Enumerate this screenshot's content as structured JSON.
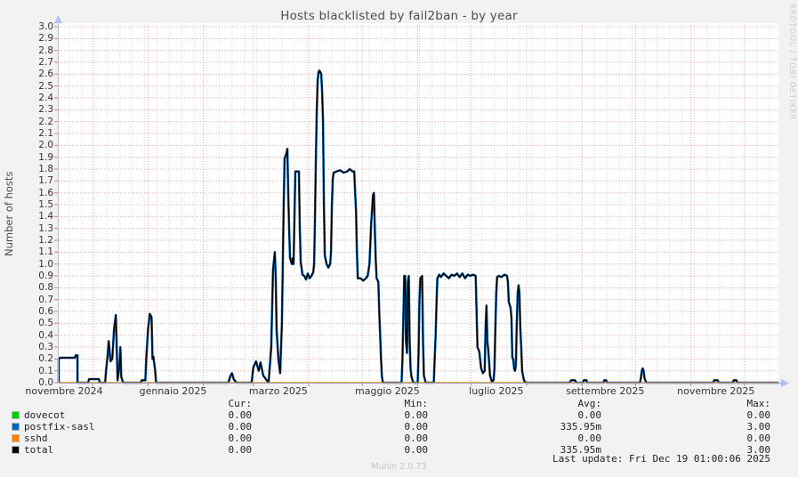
{
  "header": {
    "title": "Hosts blacklisted by fail2ban - by year"
  },
  "watermark_text": "RRDTOOL / TOBI OETIKER",
  "footer": {
    "version": "Munin 2.0.73"
  },
  "chart_data": {
    "type": "line",
    "title": "Hosts blacklisted by fail2ban - by year",
    "xlabel": "",
    "ylabel": "Number of hosts",
    "ylim": [
      0,
      3.0
    ],
    "y_tick_step": 0.1,
    "grid": true,
    "legend_position": "bottom",
    "x_axis": {
      "total_days": 403,
      "tick_labels": [
        "novembre 2024",
        "gennaio 2025",
        "marzo 2025",
        "maggio 2025",
        "luglio 2025",
        "settembre 2025",
        "novembre 2025"
      ],
      "tick_label_days": [
        3,
        64,
        123,
        184,
        245,
        306,
        368
      ],
      "month_boundary_days": [
        19,
        50,
        81,
        109,
        140,
        170,
        201,
        231,
        262,
        293,
        323,
        354,
        384
      ],
      "minor_grid_step_days": 7
    },
    "curve_points": [
      [
        0,
        0
      ],
      [
        0,
        0.2
      ],
      [
        1,
        0.21
      ],
      [
        9,
        0.21
      ],
      [
        9.5,
        0.23
      ],
      [
        10.5,
        0.23
      ],
      [
        10.5,
        0
      ],
      [
        16.5,
        0
      ],
      [
        17,
        0.03
      ],
      [
        22.5,
        0.03
      ],
      [
        23,
        0
      ],
      [
        26,
        0
      ],
      [
        26.5,
        0.1
      ],
      [
        27.5,
        0.25
      ],
      [
        28,
        0.35
      ],
      [
        29,
        0.18
      ],
      [
        30,
        0.2
      ],
      [
        31,
        0.45
      ],
      [
        32,
        0.57
      ],
      [
        32.5,
        0.3
      ],
      [
        33,
        0.02
      ],
      [
        34,
        0.15
      ],
      [
        34.5,
        0.3
      ],
      [
        35,
        0.05
      ],
      [
        36,
        0
      ],
      [
        46,
        0
      ],
      [
        46.5,
        0.02
      ],
      [
        48.5,
        0.02
      ],
      [
        49,
        0.2
      ],
      [
        50,
        0.45
      ],
      [
        51,
        0.58
      ],
      [
        52,
        0.55
      ],
      [
        52.5,
        0.2
      ],
      [
        53,
        0.22
      ],
      [
        54,
        0.1
      ],
      [
        54.5,
        0
      ],
      [
        95,
        0
      ],
      [
        96,
        0.05
      ],
      [
        97,
        0.08
      ],
      [
        98,
        0.03
      ],
      [
        99.5,
        0
      ],
      [
        108,
        0
      ],
      [
        109,
        0.13
      ],
      [
        110.5,
        0.18
      ],
      [
        112,
        0.1
      ],
      [
        113,
        0.17
      ],
      [
        114.5,
        0.06
      ],
      [
        116,
        0.03
      ],
      [
        117.5,
        0
      ],
      [
        119,
        0.3
      ],
      [
        120,
        0.95
      ],
      [
        121,
        1.1
      ],
      [
        121.5,
        0.9
      ],
      [
        122,
        0.45
      ],
      [
        123,
        0.2
      ],
      [
        124,
        0.08
      ],
      [
        125,
        0.5
      ],
      [
        126,
        1.5
      ],
      [
        126.5,
        1.89
      ],
      [
        127.5,
        1.93
      ],
      [
        128,
        1.97
      ],
      [
        128.5,
        1.6
      ],
      [
        129,
        1.3
      ],
      [
        129.5,
        1.05
      ],
      [
        130.5,
        1.0
      ],
      [
        131,
        1.05
      ],
      [
        131.5,
        1.0
      ],
      [
        132,
        1.4
      ],
      [
        132.5,
        1.78
      ],
      [
        134.5,
        1.78
      ],
      [
        135,
        1.3
      ],
      [
        135.5,
        1.02
      ],
      [
        136.5,
        0.91
      ],
      [
        137.5,
        0.9
      ],
      [
        138.5,
        0.87
      ],
      [
        139.5,
        0.92
      ],
      [
        140.5,
        0.88
      ],
      [
        141.5,
        0.9
      ],
      [
        142.5,
        0.93
      ],
      [
        143,
        1.0
      ],
      [
        143.5,
        1.4
      ],
      [
        144,
        1.9
      ],
      [
        144.5,
        2.3
      ],
      [
        145,
        2.55
      ],
      [
        145.5,
        2.62
      ],
      [
        146,
        2.63
      ],
      [
        147,
        2.6
      ],
      [
        147.5,
        2.45
      ],
      [
        148,
        2.2
      ],
      [
        148.5,
        1.5
      ],
      [
        149,
        1.07
      ],
      [
        150,
        1.0
      ],
      [
        151,
        0.97
      ],
      [
        152,
        1.0
      ],
      [
        152.5,
        1.1
      ],
      [
        153,
        1.5
      ],
      [
        153.5,
        1.72
      ],
      [
        154,
        1.77
      ],
      [
        155.5,
        1.78
      ],
      [
        157.5,
        1.79
      ],
      [
        159.5,
        1.77
      ],
      [
        161.5,
        1.78
      ],
      [
        163,
        1.8
      ],
      [
        164.5,
        1.78
      ],
      [
        165.5,
        1.78
      ],
      [
        166,
        1.6
      ],
      [
        166.5,
        1.45
      ],
      [
        167,
        1.1
      ],
      [
        167.5,
        0.88
      ],
      [
        169,
        0.88
      ],
      [
        170.5,
        0.86
      ],
      [
        172,
        0.88
      ],
      [
        173,
        0.9
      ],
      [
        174,
        1.0
      ],
      [
        175,
        1.35
      ],
      [
        176,
        1.58
      ],
      [
        176.5,
        1.6
      ],
      [
        177,
        1.3
      ],
      [
        177.5,
        1.05
      ],
      [
        178,
        0.88
      ],
      [
        179,
        0.85
      ],
      [
        179.5,
        0.6
      ],
      [
        180.5,
        0.2
      ],
      [
        181,
        0.05
      ],
      [
        181.5,
        0
      ],
      [
        192,
        0
      ],
      [
        192.5,
        0.2
      ],
      [
        193,
        0.55
      ],
      [
        193.5,
        0.9
      ],
      [
        194,
        0.9
      ],
      [
        194.5,
        0.35
      ],
      [
        195,
        0.25
      ],
      [
        195.5,
        0.85
      ],
      [
        196,
        0.9
      ],
      [
        196.5,
        0.35
      ],
      [
        197,
        0.12
      ],
      [
        197.5,
        0.05
      ],
      [
        198.5,
        0
      ],
      [
        201,
        0
      ],
      [
        201.5,
        0.25
      ],
      [
        202,
        0.7
      ],
      [
        202.5,
        0.88
      ],
      [
        203.5,
        0.9
      ],
      [
        204,
        0.35
      ],
      [
        204.5,
        0.06
      ],
      [
        205.5,
        0
      ],
      [
        210,
        0
      ],
      [
        210.5,
        0.2
      ],
      [
        211,
        0.38
      ],
      [
        211.5,
        0.65
      ],
      [
        212,
        0.88
      ],
      [
        213,
        0.91
      ],
      [
        214,
        0.89
      ],
      [
        215.5,
        0.92
      ],
      [
        217,
        0.9
      ],
      [
        218.5,
        0.88
      ],
      [
        220,
        0.91
      ],
      [
        221.5,
        0.9
      ],
      [
        223,
        0.92
      ],
      [
        224.5,
        0.89
      ],
      [
        226,
        0.92
      ],
      [
        227.5,
        0.88
      ],
      [
        229,
        0.91
      ],
      [
        230.5,
        0.9
      ],
      [
        232,
        0.91
      ],
      [
        233.5,
        0.9
      ],
      [
        234,
        0.6
      ],
      [
        234.5,
        0.3
      ],
      [
        235.5,
        0.26
      ],
      [
        236.5,
        0.12
      ],
      [
        237.5,
        0.08
      ],
      [
        238.5,
        0.1
      ],
      [
        239,
        0.45
      ],
      [
        239.5,
        0.65
      ],
      [
        240,
        0.35
      ],
      [
        240.5,
        0.28
      ],
      [
        241.5,
        0.06
      ],
      [
        242.5,
        0.01
      ],
      [
        243.5,
        0.02
      ],
      [
        244,
        0.12
      ],
      [
        244.5,
        0.45
      ],
      [
        245,
        0.75
      ],
      [
        245.5,
        0.89
      ],
      [
        246.5,
        0.9
      ],
      [
        248,
        0.89
      ],
      [
        249.5,
        0.91
      ],
      [
        251,
        0.9
      ],
      [
        251.5,
        0.85
      ],
      [
        252,
        0.68
      ],
      [
        253,
        0.63
      ],
      [
        253.5,
        0.55
      ],
      [
        254,
        0.21
      ],
      [
        254.5,
        0.2
      ],
      [
        255,
        0.12
      ],
      [
        255.5,
        0.1
      ],
      [
        256,
        0.15
      ],
      [
        256.5,
        0.5
      ],
      [
        257,
        0.75
      ],
      [
        257.5,
        0.82
      ],
      [
        258,
        0.75
      ],
      [
        258.5,
        0.45
      ],
      [
        259,
        0.3
      ],
      [
        259.5,
        0.1
      ],
      [
        260.5,
        0.02
      ],
      [
        261.5,
        0
      ],
      [
        286,
        0
      ],
      [
        287,
        0.02
      ],
      [
        289,
        0.02
      ],
      [
        290,
        0
      ],
      [
        293.5,
        0
      ],
      [
        294,
        0.02
      ],
      [
        295.5,
        0.02
      ],
      [
        296,
        0
      ],
      [
        305,
        0
      ],
      [
        305.5,
        0.02
      ],
      [
        306.5,
        0.02
      ],
      [
        307,
        0
      ],
      [
        325.5,
        0
      ],
      [
        326,
        0.04
      ],
      [
        326.5,
        0.1
      ],
      [
        327,
        0.12
      ],
      [
        327.5,
        0.1
      ],
      [
        328,
        0.04
      ],
      [
        329,
        0
      ],
      [
        366.5,
        0
      ],
      [
        367,
        0.02
      ],
      [
        369,
        0.02
      ],
      [
        369.5,
        0
      ],
      [
        377.5,
        0
      ],
      [
        378,
        0.02
      ],
      [
        379.5,
        0.02
      ],
      [
        380,
        0
      ],
      [
        403,
        0
      ]
    ],
    "series": [
      {
        "name": "dovecot",
        "color": "#00cc00",
        "points": "zero"
      },
      {
        "name": "postfix-sasl",
        "color": "#0066b3",
        "points": "curve"
      },
      {
        "name": "sshd",
        "color": "#ff8000",
        "points": "zero"
      },
      {
        "name": "total",
        "color": "#000000",
        "points": "curve"
      }
    ],
    "legend": {
      "headers": [
        "Cur:",
        "Min:",
        "Avg:",
        "Max:"
      ],
      "rows": [
        {
          "label": "dovecot",
          "color": "#00cc00",
          "cur": "0.00",
          "min": "0.00",
          "avg": "0.00",
          "max": "0.00"
        },
        {
          "label": "postfix-sasl",
          "color": "#0066b3",
          "cur": "0.00",
          "min": "0.00",
          "avg": "335.95m",
          "max": "3.00"
        },
        {
          "label": "sshd",
          "color": "#ff8000",
          "cur": "0.00",
          "min": "0.00",
          "avg": "0.00",
          "max": "0.00"
        },
        {
          "label": "total",
          "color": "#000000",
          "cur": "0.00",
          "min": "0.00",
          "avg": "335.95m",
          "max": "3.00"
        }
      ]
    },
    "last_update": "Last update: Fri Dec 19 01:00:06 2025"
  }
}
